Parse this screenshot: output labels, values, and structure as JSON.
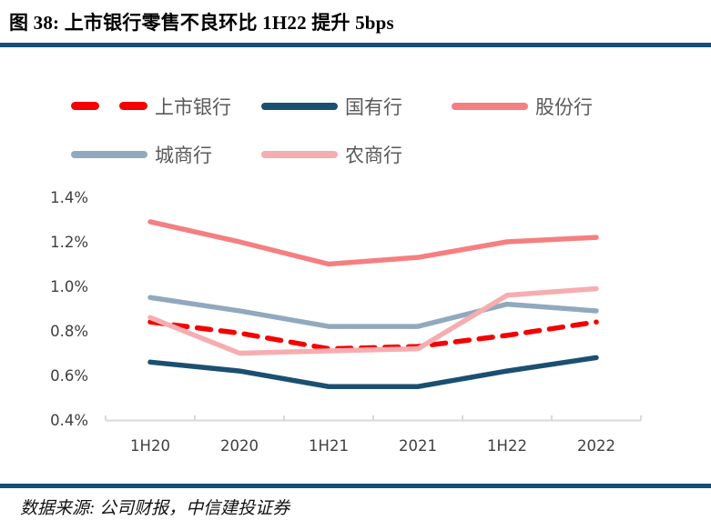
{
  "header": {
    "title": "图 38: 上市银行零售不良环比 1H22 提升 5bps"
  },
  "footer": {
    "source": "数据来源: 公司财报，中信建投证券"
  },
  "colors": {
    "accent_bar": "#164E78",
    "axis_line": "#D9D9D9",
    "tick_text": "#3F3F3F",
    "legend_text": "#595959"
  },
  "chart_data": {
    "type": "line",
    "title": "上市银行零售不良环比 1H22 提升 5bps",
    "categories": [
      "1H20",
      "2020",
      "1H21",
      "2021",
      "1H22",
      "2022"
    ],
    "series": [
      {
        "name": "上市银行",
        "color": "#F40000",
        "dash": true,
        "values": [
          0.84,
          0.79,
          0.72,
          0.73,
          0.78,
          0.84
        ]
      },
      {
        "name": "国有行",
        "color": "#1B4F72",
        "dash": false,
        "values": [
          0.66,
          0.62,
          0.55,
          0.55,
          0.62,
          0.68
        ]
      },
      {
        "name": "股份行",
        "color": "#F57F80",
        "dash": false,
        "values": [
          1.29,
          1.2,
          1.1,
          1.13,
          1.2,
          1.22
        ]
      },
      {
        "name": "城商行",
        "color": "#91A9BE",
        "dash": false,
        "values": [
          0.95,
          0.89,
          0.82,
          0.82,
          0.92,
          0.89
        ]
      },
      {
        "name": "农商行",
        "color": "#F6ADB1",
        "dash": false,
        "values": [
          0.86,
          0.7,
          0.71,
          0.72,
          0.96,
          0.99
        ]
      }
    ],
    "ylabel_ticks": [
      "1.4%",
      "1.2%",
      "1.0%",
      "0.8%",
      "0.6%",
      "0.4%"
    ],
    "ylim": [
      0.4,
      1.4
    ],
    "xlabel": "",
    "ylabel": "",
    "grid": false,
    "legend_position": "top"
  }
}
